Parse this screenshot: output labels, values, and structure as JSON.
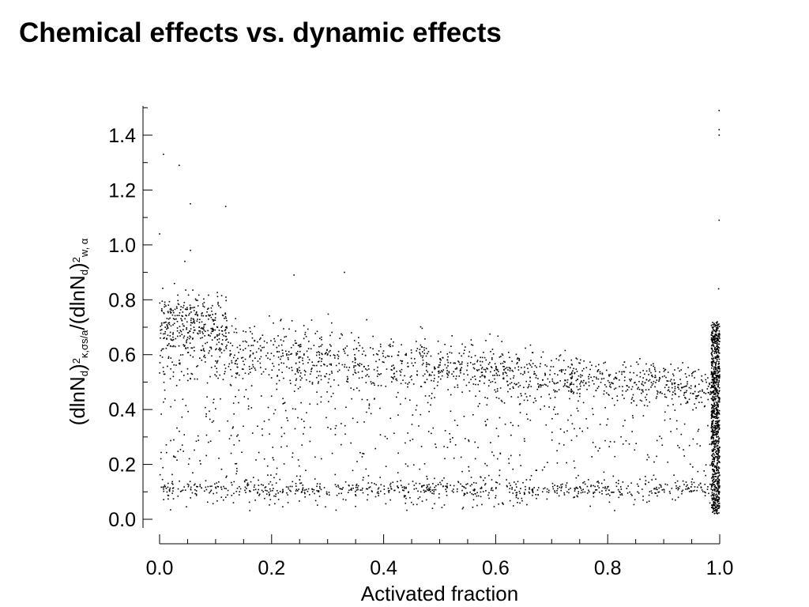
{
  "slide": {
    "title": "Chemical effects vs. dynamic effects"
  },
  "chart_data": {
    "type": "scatter",
    "title": "Chemical effects vs. dynamic effects",
    "xlabel": "Activated fraction",
    "ylabel": {
      "parts": [
        {
          "text": "(dlnN",
          "style": "normal"
        },
        {
          "text": "d",
          "style": "sub"
        },
        {
          "text": ")",
          "style": "normal"
        },
        {
          "text": "2",
          "style": "sup"
        },
        {
          "text": "κ,σs/a",
          "style": "sub"
        },
        {
          "text": "/(dlnN",
          "style": "normal"
        },
        {
          "text": "d",
          "style": "sub"
        },
        {
          "text": ")",
          "style": "normal"
        },
        {
          "text": "2",
          "style": "sup"
        },
        {
          "text": "w, α",
          "style": "sub"
        }
      ]
    },
    "xlim": [
      0.0,
      1.0
    ],
    "ylim": [
      -0.03,
      1.5
    ],
    "xticks": [
      0.0,
      0.2,
      0.4,
      0.6,
      0.8,
      1.0
    ],
    "xtick_labels": [
      "0.0",
      "0.2",
      "0.4",
      "0.6",
      "0.8",
      "1.0"
    ],
    "yticks": [
      0.0,
      0.2,
      0.4,
      0.6,
      0.8,
      1.0,
      1.2,
      1.4
    ],
    "ytick_labels": [
      "0.0",
      "0.2",
      "0.4",
      "0.6",
      "0.8",
      "1.0",
      "1.2",
      "1.4"
    ],
    "marker_color": "#000000",
    "grid": false,
    "legend": "none",
    "outliers": [
      {
        "x": 0.007,
        "y": 1.33
      },
      {
        "x": 0.035,
        "y": 1.29
      },
      {
        "x": 0.055,
        "y": 1.15
      },
      {
        "x": 0.118,
        "y": 1.14
      },
      {
        "x": 0.0,
        "y": 1.04
      },
      {
        "x": 0.045,
        "y": 0.94
      },
      {
        "x": 0.055,
        "y": 0.98
      },
      {
        "x": 0.24,
        "y": 0.89
      },
      {
        "x": 0.33,
        "y": 0.9
      },
      {
        "x": 0.999,
        "y": 1.49
      },
      {
        "x": 0.999,
        "y": 1.42
      },
      {
        "x": 0.999,
        "y": 1.4
      },
      {
        "x": 0.999,
        "y": 1.09
      },
      {
        "x": 0.998,
        "y": 0.84
      }
    ],
    "point_clouds": [
      {
        "description": "upper band",
        "x_range": [
          0.0,
          1.0
        ],
        "y_center_start": 0.62,
        "y_center_end": 0.48,
        "y_spread": 0.12,
        "count": 1500
      },
      {
        "description": "low-activation cluster",
        "x_range": [
          0.0,
          0.12
        ],
        "y_center": 0.72,
        "y_spread": 0.1,
        "count": 260
      },
      {
        "description": "lower band",
        "x_range": [
          0.0,
          1.0
        ],
        "y_center": 0.11,
        "y_spread": 0.03,
        "count": 600
      },
      {
        "description": "scattered middle",
        "x_range": [
          0.0,
          1.0
        ],
        "y_range": [
          0.03,
          0.45
        ],
        "count": 600
      },
      {
        "description": "dense column at full activation",
        "x_range": [
          0.985,
          1.0
        ],
        "y_range": [
          0.02,
          0.72
        ],
        "count": 900
      }
    ]
  }
}
